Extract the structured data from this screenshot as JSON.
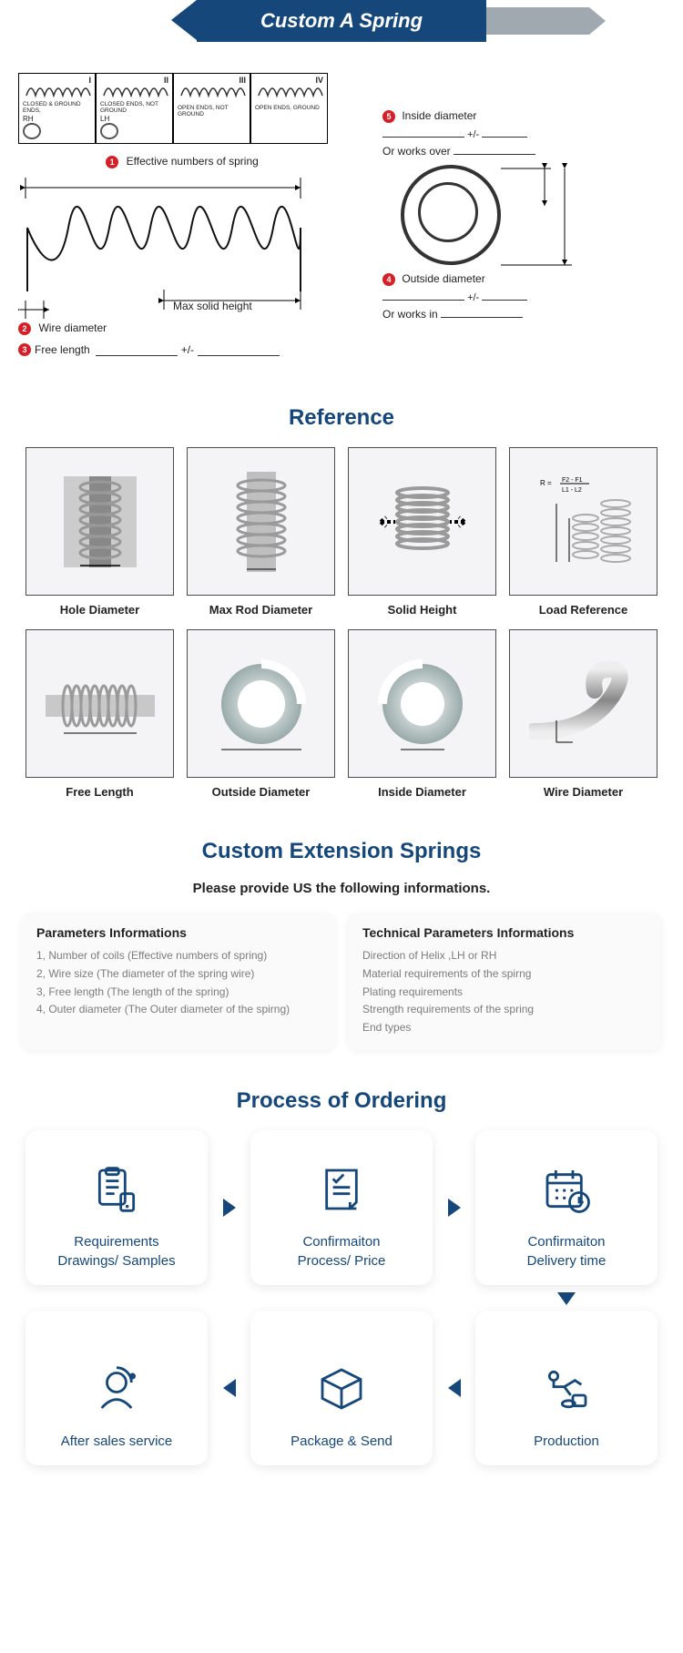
{
  "header": {
    "title": "Custom A Spring"
  },
  "diagram": {
    "endTypes": [
      {
        "num": "I",
        "label": "CLOSED & GROUND ENDS,",
        "hand": "RH",
        "showCircle": true
      },
      {
        "num": "II",
        "label": "CLOSED ENDS, NOT GROUND",
        "hand": "LH",
        "showCircle": true
      },
      {
        "num": "III",
        "label": "OPEN ENDS, NOT GROUND",
        "hand": "",
        "showCircle": false
      },
      {
        "num": "IV",
        "label": "OPEN ENDS, GROUND",
        "hand": "",
        "showCircle": false
      }
    ],
    "labels": {
      "n1": "Effective numbers of spring",
      "n2": "Wire diameter",
      "n3": "Free length",
      "n4": "Outside diameter",
      "n5": "Inside diameter",
      "maxSolid": "Max solid height",
      "pm": "+/-",
      "worksOver": "Or works over",
      "worksIn": "Or works in"
    },
    "badgeColor": "#d62027"
  },
  "reference": {
    "title": "Reference",
    "items": [
      "Hole Diameter",
      "Max Rod Diameter",
      "Solid Height",
      "Load Reference",
      "Free Length",
      "Outside Diameter",
      "Inside Diameter",
      "Wire Diameter"
    ]
  },
  "custom": {
    "title": "Custom Extension Springs",
    "subtitle": "Please provide US the following informations.",
    "left": {
      "title": "Parameters Informations",
      "items": [
        "1,   Number of coils (Effective numbers of spring)",
        "2,   Wire size (The diameter of the spring wire)",
        "3,   Free length (The length of the spring)",
        "4,   Outer diameter (The Outer diameter of the spirng)"
      ]
    },
    "right": {
      "title": "Technical Parameters Informations",
      "items": [
        "Direction of Helix ,LH or RH",
        "Material requirements of the spirng",
        "Plating requirements",
        "Strength requirements of the spring",
        "End types"
      ]
    }
  },
  "process": {
    "title": "Process of Ordering",
    "steps": [
      "Requirements Drawings/ Samples",
      "Confirmaiton Process/ Price",
      "Confirmaiton Delivery time",
      "After sales service",
      "Package & Send",
      "Production"
    ]
  },
  "colors": {
    "primary": "#15477a",
    "grey": "#a0a8b0",
    "textMuted": "#7c7c7c"
  }
}
